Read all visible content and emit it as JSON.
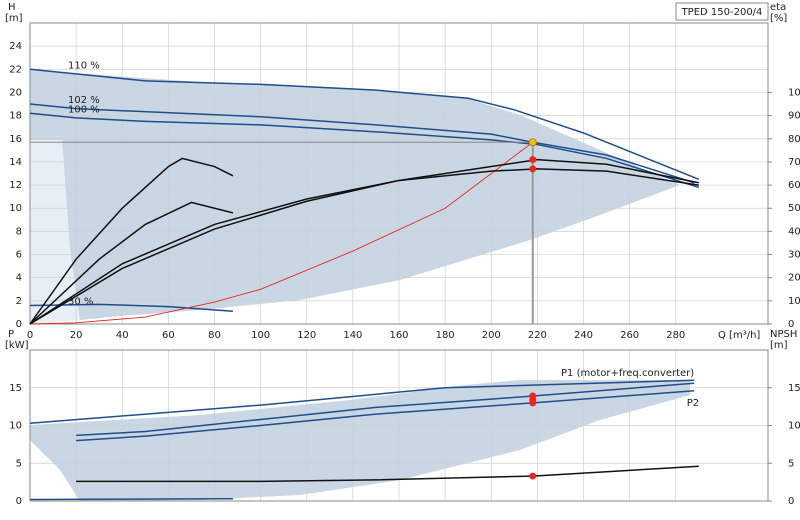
{
  "chart_data": [
    {
      "type": "line",
      "title": "TPED 150-200/4",
      "xlabel": "Q [m³/h]",
      "ylabel": "H",
      "yunit": "[m]",
      "y2label": "eta",
      "y2unit": "[%]",
      "xlim": [
        0,
        320
      ],
      "xticks": [
        0,
        20,
        40,
        60,
        80,
        100,
        120,
        140,
        160,
        180,
        200,
        220,
        240,
        260,
        280
      ],
      "ylim": [
        0,
        26
      ],
      "yticks": [
        0,
        2,
        4,
        6,
        8,
        10,
        12,
        14,
        16,
        18,
        20,
        22,
        24
      ],
      "y2lim": [
        0,
        130
      ],
      "y2ticks": [
        0,
        10,
        20,
        30,
        40,
        50,
        60,
        70,
        80,
        90,
        100
      ],
      "grid": true,
      "show_tick_labels": true,
      "series": [
        {
          "name": "110 %",
          "color": "#1f4e8c",
          "x": [
            0,
            50,
            100,
            150,
            190,
            210,
            240,
            290
          ],
          "values": [
            22,
            21,
            20.7,
            20.2,
            19.5,
            18.5,
            16.5,
            12.5
          ]
        },
        {
          "name": "102 %",
          "color": "#1f4e8c",
          "x": [
            0,
            20,
            100,
            150,
            200,
            218,
            250,
            288
          ],
          "values": [
            19,
            18.6,
            17.9,
            17.2,
            16.4,
            15.7,
            14.6,
            12.2
          ]
        },
        {
          "name": "100 %",
          "color": "#1f4e8c",
          "x": [
            0,
            20,
            50,
            100,
            150,
            200,
            220,
            250,
            290
          ],
          "values": [
            18.2,
            17.8,
            17.5,
            17.2,
            16.6,
            15.9,
            15.5,
            14.3,
            11.8
          ]
        },
        {
          "name": "30 %",
          "color": "#1f4e8c",
          "x": [
            0,
            30,
            60,
            88
          ],
          "values": [
            1.6,
            1.7,
            1.5,
            1.1
          ]
        },
        {
          "color": "#e8281e",
          "x": [
            0,
            20,
            50,
            80,
            100,
            140,
            180,
            218
          ],
          "values": [
            0,
            0.1,
            0.6,
            1.9,
            3,
            6.3,
            10,
            15.7
          ]
        },
        {
          "color": "#111111",
          "axis": "y2",
          "x": [
            0,
            40,
            80,
            120,
            160,
            200,
            220,
            250,
            290
          ],
          "values": [
            0,
            24,
            41,
            53,
            62,
            68,
            71,
            69,
            61
          ]
        },
        {
          "color": "#111111",
          "axis": "y2",
          "x": [
            0,
            40,
            80,
            120,
            160,
            200,
            220,
            250,
            290
          ],
          "values": [
            0,
            26,
            43,
            54,
            62,
            66,
            67,
            66,
            60
          ]
        },
        {
          "color": "#111111",
          "axis": "y2",
          "x": [
            0,
            20,
            40,
            60,
            66,
            80,
            88
          ],
          "values": [
            0,
            28,
            50,
            68,
            71.5,
            68,
            64
          ]
        },
        {
          "color": "#111111",
          "axis": "y2",
          "x": [
            0,
            30,
            50,
            70,
            88
          ],
          "values": [
            0,
            28,
            43,
            52.5,
            48
          ]
        },
        {
          "color": "#f5c400",
          "marker": true,
          "guides": true,
          "x": [
            218
          ],
          "values": [
            15.7
          ]
        },
        {
          "color": "#e8281e",
          "marker": true,
          "axis": "y2",
          "x": [
            218,
            218
          ],
          "values": [
            71,
            67
          ]
        }
      ]
    },
    {
      "type": "line",
      "ylabel": "P",
      "yunit": "[kW]",
      "y2label": "NPSH",
      "y2unit": "[m]",
      "xlim": [
        0,
        320
      ],
      "xticks": [
        0,
        20,
        40,
        60,
        80,
        100,
        120,
        140,
        160,
        180,
        200,
        220,
        240,
        260,
        280
      ],
      "ylim": [
        0,
        20
      ],
      "yticks": [
        0,
        5,
        10,
        15
      ],
      "y2lim": [
        0,
        20
      ],
      "y2ticks": [
        0,
        5,
        10,
        15
      ],
      "grid": true,
      "show_tick_labels": false,
      "series": [
        {
          "name": "P1 (motor+freq.converter)",
          "color": "#1f4e8c",
          "x": [
            20,
            50,
            100,
            150,
            200,
            218,
            288
          ],
          "values": [
            8.7,
            9.2,
            10.8,
            12.4,
            13.5,
            13.9,
            15.6
          ]
        },
        {
          "name": "P2",
          "color": "#1f4e8c",
          "x": [
            20,
            50,
            100,
            150,
            200,
            218,
            288
          ],
          "values": [
            8,
            8.6,
            10,
            11.5,
            12.6,
            13,
            14.6
          ]
        },
        {
          "color": "#1f4e8c",
          "x": [
            0,
            100,
            180,
            288
          ],
          "values": [
            10.3,
            12.7,
            15,
            16
          ]
        },
        {
          "color": "#1f4e8c",
          "x": [
            0,
            88
          ],
          "values": [
            0.2,
            0.3
          ]
        },
        {
          "color": "#111111",
          "axis": "y2",
          "x": [
            20,
            100,
            150,
            218,
            290
          ],
          "values": [
            2.6,
            2.6,
            2.8,
            3.3,
            4.6
          ]
        },
        {
          "color": "#e8281e",
          "marker": true,
          "x": [
            218,
            218,
            218
          ],
          "values": [
            13.9,
            13.4,
            13
          ]
        },
        {
          "color": "#e8281e",
          "marker": true,
          "axis": "y2",
          "x": [
            218
          ],
          "values": [
            3.3
          ]
        }
      ]
    }
  ]
}
